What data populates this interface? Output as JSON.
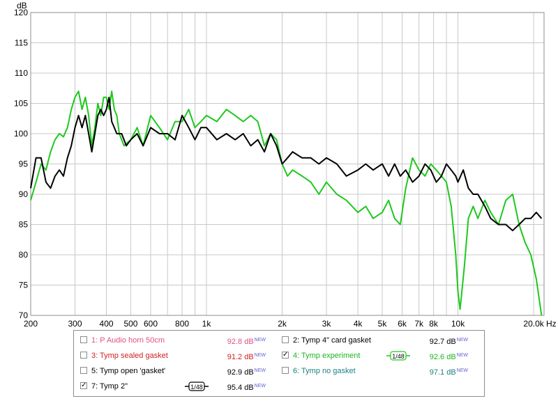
{
  "chart_data": {
    "type": "line",
    "ylabel": "dB",
    "xunit": "Hz",
    "xscale": "log",
    "xlim": [
      200,
      22000
    ],
    "ylim": [
      70,
      120
    ],
    "grid": true,
    "x_ticks": [
      {
        "value": 200,
        "label": "200"
      },
      {
        "value": 300,
        "label": "300"
      },
      {
        "value": 400,
        "label": "400"
      },
      {
        "value": 500,
        "label": "500"
      },
      {
        "value": 600,
        "label": "600"
      },
      {
        "value": 800,
        "label": "800"
      },
      {
        "value": 1000,
        "label": "1k"
      },
      {
        "value": 2000,
        "label": "2k"
      },
      {
        "value": 3000,
        "label": "3k"
      },
      {
        "value": 4000,
        "label": "4k"
      },
      {
        "value": 5000,
        "label": "5k"
      },
      {
        "value": 6000,
        "label": "6k"
      },
      {
        "value": 7000,
        "label": "7k"
      },
      {
        "value": 8000,
        "label": "8k"
      },
      {
        "value": 10000,
        "label": "10k"
      },
      {
        "value": 20000,
        "label": "20.0k"
      }
    ],
    "y_ticks": [
      70,
      75,
      80,
      85,
      90,
      95,
      100,
      105,
      110,
      115,
      120
    ],
    "series": [
      {
        "name": "4: Tymp experiment",
        "color": "#1ec81e",
        "points": [
          [
            200,
            89
          ],
          [
            210,
            92
          ],
          [
            220,
            95
          ],
          [
            230,
            94
          ],
          [
            240,
            97
          ],
          [
            250,
            99
          ],
          [
            260,
            100
          ],
          [
            270,
            99.5
          ],
          [
            280,
            101
          ],
          [
            290,
            104
          ],
          [
            300,
            106
          ],
          [
            310,
            107
          ],
          [
            320,
            104
          ],
          [
            330,
            106
          ],
          [
            340,
            103
          ],
          [
            350,
            98
          ],
          [
            360,
            101
          ],
          [
            370,
            105
          ],
          [
            380,
            103
          ],
          [
            390,
            106
          ],
          [
            400,
            106
          ],
          [
            410,
            104
          ],
          [
            420,
            107
          ],
          [
            430,
            104
          ],
          [
            440,
            103
          ],
          [
            450,
            100
          ],
          [
            470,
            98
          ],
          [
            500,
            99
          ],
          [
            530,
            101
          ],
          [
            560,
            98
          ],
          [
            600,
            103
          ],
          [
            650,
            101
          ],
          [
            700,
            99
          ],
          [
            750,
            102
          ],
          [
            800,
            102
          ],
          [
            850,
            104
          ],
          [
            900,
            101
          ],
          [
            950,
            102
          ],
          [
            1000,
            103
          ],
          [
            1100,
            102
          ],
          [
            1200,
            104
          ],
          [
            1300,
            103
          ],
          [
            1400,
            102
          ],
          [
            1500,
            103
          ],
          [
            1600,
            102
          ],
          [
            1700,
            98
          ],
          [
            1800,
            100
          ],
          [
            1900,
            99
          ],
          [
            2000,
            95
          ],
          [
            2100,
            93
          ],
          [
            2200,
            94
          ],
          [
            2400,
            93
          ],
          [
            2600,
            92
          ],
          [
            2800,
            90
          ],
          [
            3000,
            92
          ],
          [
            3300,
            90
          ],
          [
            3600,
            89
          ],
          [
            4000,
            87
          ],
          [
            4300,
            88
          ],
          [
            4600,
            86
          ],
          [
            5000,
            87
          ],
          [
            5300,
            89
          ],
          [
            5600,
            86
          ],
          [
            5900,
            85
          ],
          [
            6200,
            91
          ],
          [
            6600,
            96
          ],
          [
            7000,
            94
          ],
          [
            7400,
            93
          ],
          [
            7800,
            95
          ],
          [
            8200,
            94
          ],
          [
            8600,
            93
          ],
          [
            9000,
            92
          ],
          [
            9400,
            88
          ],
          [
            9800,
            80
          ],
          [
            10000,
            74
          ],
          [
            10200,
            71
          ],
          [
            10600,
            78
          ],
          [
            11000,
            86
          ],
          [
            11500,
            88
          ],
          [
            12000,
            86
          ],
          [
            12800,
            89
          ],
          [
            13500,
            87
          ],
          [
            14500,
            85
          ],
          [
            15500,
            89
          ],
          [
            16500,
            90
          ],
          [
            17500,
            85
          ],
          [
            18500,
            82
          ],
          [
            19500,
            80
          ],
          [
            20500,
            76
          ],
          [
            21500,
            70
          ]
        ]
      },
      {
        "name": "7: Tymp 2\"",
        "color": "#000000",
        "points": [
          [
            200,
            91
          ],
          [
            210,
            96
          ],
          [
            220,
            96
          ],
          [
            230,
            92
          ],
          [
            240,
            91
          ],
          [
            250,
            93
          ],
          [
            260,
            94
          ],
          [
            270,
            93
          ],
          [
            280,
            96
          ],
          [
            290,
            98
          ],
          [
            300,
            101
          ],
          [
            310,
            103
          ],
          [
            320,
            101
          ],
          [
            330,
            103
          ],
          [
            340,
            100
          ],
          [
            350,
            97
          ],
          [
            360,
            100
          ],
          [
            370,
            103
          ],
          [
            380,
            104
          ],
          [
            390,
            103
          ],
          [
            400,
            104
          ],
          [
            410,
            106
          ],
          [
            420,
            102
          ],
          [
            440,
            100
          ],
          [
            460,
            100
          ],
          [
            480,
            98
          ],
          [
            500,
            99
          ],
          [
            530,
            100
          ],
          [
            560,
            98
          ],
          [
            600,
            101
          ],
          [
            650,
            100
          ],
          [
            700,
            100
          ],
          [
            750,
            99
          ],
          [
            800,
            103
          ],
          [
            850,
            101
          ],
          [
            900,
            99
          ],
          [
            950,
            101
          ],
          [
            1000,
            101
          ],
          [
            1100,
            99
          ],
          [
            1200,
            100
          ],
          [
            1300,
            99
          ],
          [
            1400,
            100
          ],
          [
            1500,
            98
          ],
          [
            1600,
            99
          ],
          [
            1700,
            97
          ],
          [
            1800,
            100
          ],
          [
            1900,
            98
          ],
          [
            2000,
            95
          ],
          [
            2100,
            96
          ],
          [
            2200,
            97
          ],
          [
            2400,
            96
          ],
          [
            2600,
            96
          ],
          [
            2800,
            95
          ],
          [
            3000,
            96
          ],
          [
            3300,
            95
          ],
          [
            3600,
            93
          ],
          [
            4000,
            94
          ],
          [
            4300,
            95
          ],
          [
            4600,
            94
          ],
          [
            5000,
            95
          ],
          [
            5300,
            93
          ],
          [
            5600,
            95
          ],
          [
            5900,
            93
          ],
          [
            6200,
            94
          ],
          [
            6600,
            92
          ],
          [
            7000,
            93
          ],
          [
            7400,
            95
          ],
          [
            7800,
            94
          ],
          [
            8200,
            92
          ],
          [
            8600,
            93
          ],
          [
            9000,
            95
          ],
          [
            9400,
            94
          ],
          [
            9800,
            93
          ],
          [
            10000,
            92
          ],
          [
            10500,
            94
          ],
          [
            11000,
            91
          ],
          [
            11500,
            90
          ],
          [
            12000,
            90
          ],
          [
            12800,
            88
          ],
          [
            13500,
            86
          ],
          [
            14500,
            85
          ],
          [
            15500,
            85
          ],
          [
            16500,
            84
          ],
          [
            17500,
            85
          ],
          [
            18500,
            86
          ],
          [
            19500,
            86
          ],
          [
            20500,
            87
          ],
          [
            21500,
            86
          ]
        ]
      }
    ]
  },
  "legend": [
    {
      "label": "1: P Audio horn 50cm",
      "value": "92.8 dB",
      "new": "NEW",
      "checked": false,
      "color": "#e05080"
    },
    {
      "label": "2: Tymp 4\" card gasket",
      "value": "92.7 dB",
      "new": "NEW",
      "checked": false,
      "color": "#000000"
    },
    {
      "label": "3: Tymp sealed gasket",
      "value": "91.2 dB",
      "new": "NEW",
      "checked": false,
      "color": "#d02020"
    },
    {
      "label": "4: Tymp experiment",
      "value": "92.6 dB",
      "new": "NEW",
      "checked": true,
      "color": "#1eb41e",
      "smoothing": "1/48"
    },
    {
      "label": "5: Tymp open 'gasket'",
      "value": "92.9 dB",
      "new": "NEW",
      "checked": false,
      "color": "#000000"
    },
    {
      "label": "6: Tymp no gasket",
      "value": "97.1 dB",
      "new": "NEW",
      "checked": false,
      "color": "#1c7f80"
    },
    {
      "label": "7: Tymp 2\"",
      "value": "95.4 dB",
      "new": "NEW",
      "checked": true,
      "color": "#000000",
      "smoothing": "1/48"
    }
  ]
}
